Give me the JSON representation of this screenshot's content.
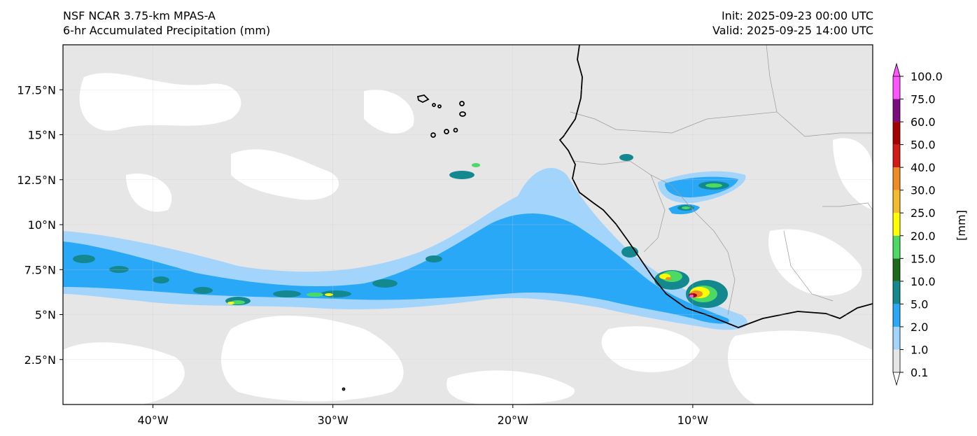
{
  "header": {
    "model": "NSF NCAR 3.75-km MPAS-A",
    "field": "6-hr Accumulated Precipitation (mm)",
    "init": "Init: 2025-09-23 00:00 UTC",
    "valid": "Valid: 2025-09-25 14:00 UTC"
  },
  "map": {
    "lon_range": [
      -45,
      0
    ],
    "lat_range": [
      0,
      20
    ],
    "lon_ticks": [
      {
        "value": -40,
        "label": "40°W"
      },
      {
        "value": -30,
        "label": "30°W"
      },
      {
        "value": -20,
        "label": "20°W"
      },
      {
        "value": -10,
        "label": "10°W"
      }
    ],
    "lat_ticks": [
      {
        "value": 2.5,
        "label": "2.5°N"
      },
      {
        "value": 5,
        "label": "5°N"
      },
      {
        "value": 7.5,
        "label": "7.5°N"
      },
      {
        "value": 10,
        "label": "10°N"
      },
      {
        "value": 12.5,
        "label": "12.5°N"
      },
      {
        "value": 15,
        "label": "15°N"
      },
      {
        "value": 17.5,
        "label": "17.5°N"
      }
    ]
  },
  "colorbar": {
    "unit_label": "[mm]",
    "levels": [
      "0.1",
      "1.0",
      "2.0",
      "5.0",
      "10.0",
      "15.0",
      "20.0",
      "25.0",
      "30.0",
      "40.0",
      "50.0",
      "60.0",
      "75.0",
      "100.0"
    ],
    "colors": [
      "#e6e6e6",
      "#a3d4fb",
      "#2aa8f8",
      "#13888f",
      "#1d6a1c",
      "#4cd964",
      "#ffff00",
      "#f2bc2e",
      "#ef8c25",
      "#d21c18",
      "#a60000",
      "#7d0b80",
      "#ff55ff"
    ],
    "under_color": "#ffffff",
    "over_color": "#ff55ff"
  }
}
